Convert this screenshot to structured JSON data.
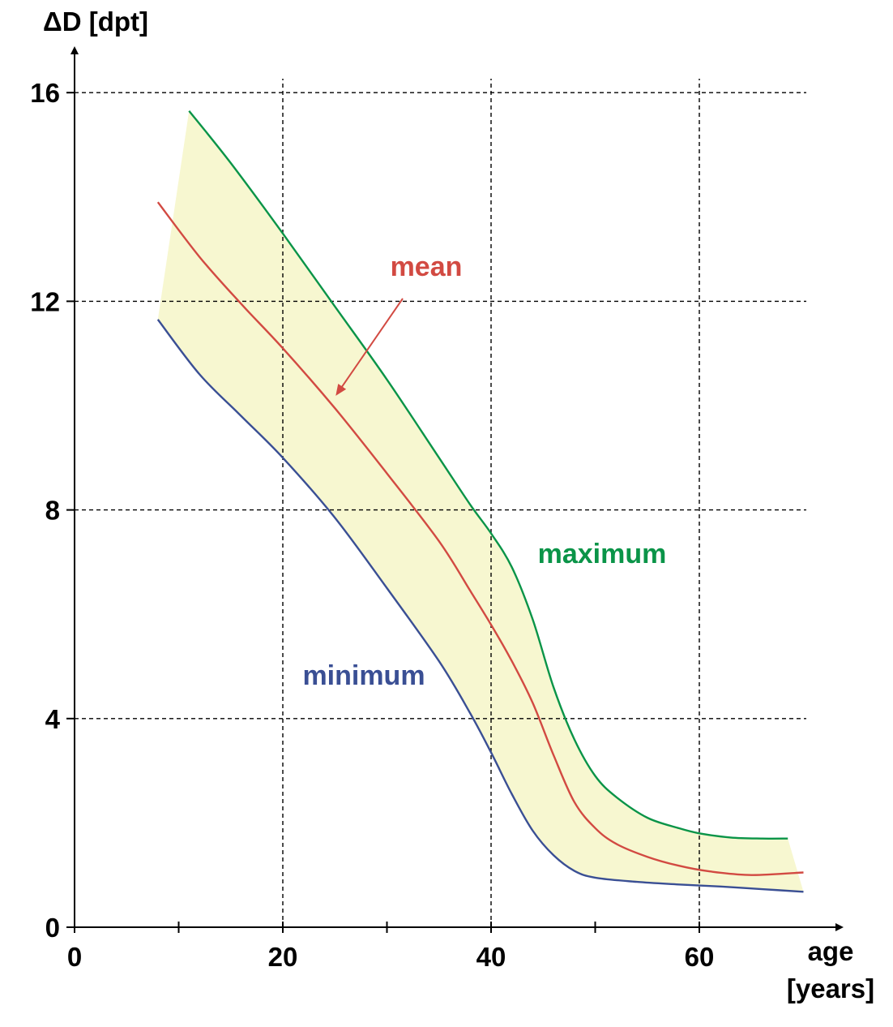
{
  "chart_data": {
    "type": "area",
    "xlabel_line1": "age",
    "xlabel_line2": "[years]",
    "ylabel": "ΔD [dpt]",
    "xlim": [
      0,
      70
    ],
    "ylim": [
      0,
      16
    ],
    "x_ticks": [
      0,
      20,
      40,
      60
    ],
    "y_ticks": [
      0,
      4,
      8,
      12,
      16
    ],
    "x_minor_ticks": [
      10,
      30,
      50
    ],
    "grid": "dashed",
    "band_color": "#f7f7d0",
    "series": [
      {
        "name": "maximum",
        "color": "#0a9448",
        "points": [
          [
            11,
            15.65
          ],
          [
            15,
            14.65
          ],
          [
            20,
            13.3
          ],
          [
            25,
            11.9
          ],
          [
            30,
            10.5
          ],
          [
            35,
            9.0
          ],
          [
            38,
            8.1
          ],
          [
            40,
            7.55
          ],
          [
            42,
            6.9
          ],
          [
            44,
            5.9
          ],
          [
            46,
            4.6
          ],
          [
            48,
            3.6
          ],
          [
            50,
            2.9
          ],
          [
            52,
            2.5
          ],
          [
            55,
            2.1
          ],
          [
            58,
            1.9
          ],
          [
            60,
            1.8
          ],
          [
            63,
            1.72
          ],
          [
            66,
            1.7
          ],
          [
            68.5,
            1.7
          ]
        ]
      },
      {
        "name": "mean",
        "color": "#d24a42",
        "points": [
          [
            8,
            13.9
          ],
          [
            12,
            12.85
          ],
          [
            16,
            11.95
          ],
          [
            20,
            11.1
          ],
          [
            25,
            9.95
          ],
          [
            30,
            8.7
          ],
          [
            35,
            7.4
          ],
          [
            38,
            6.45
          ],
          [
            40,
            5.8
          ],
          [
            42,
            5.1
          ],
          [
            44,
            4.3
          ],
          [
            46,
            3.3
          ],
          [
            48,
            2.4
          ],
          [
            50,
            1.9
          ],
          [
            52,
            1.6
          ],
          [
            55,
            1.35
          ],
          [
            58,
            1.18
          ],
          [
            61,
            1.07
          ],
          [
            65,
            1.0
          ],
          [
            70,
            1.05
          ]
        ]
      },
      {
        "name": "minimum",
        "color": "#3a4f94",
        "points": [
          [
            8,
            11.65
          ],
          [
            12,
            10.6
          ],
          [
            16,
            9.8
          ],
          [
            20,
            9.0
          ],
          [
            25,
            7.85
          ],
          [
            30,
            6.5
          ],
          [
            35,
            5.1
          ],
          [
            38,
            4.1
          ],
          [
            40,
            3.35
          ],
          [
            42,
            2.55
          ],
          [
            44,
            1.85
          ],
          [
            46,
            1.38
          ],
          [
            48,
            1.08
          ],
          [
            50,
            0.95
          ],
          [
            54,
            0.87
          ],
          [
            58,
            0.82
          ],
          [
            62,
            0.78
          ],
          [
            66,
            0.73
          ],
          [
            70,
            0.68
          ]
        ]
      }
    ],
    "annotations": [
      {
        "series": "mean",
        "text": "mean",
        "arrow_to": [
          25,
          10.2
        ]
      },
      {
        "series": "maximum",
        "text": "maximum"
      },
      {
        "series": "minimum",
        "text": "minimum"
      }
    ]
  }
}
